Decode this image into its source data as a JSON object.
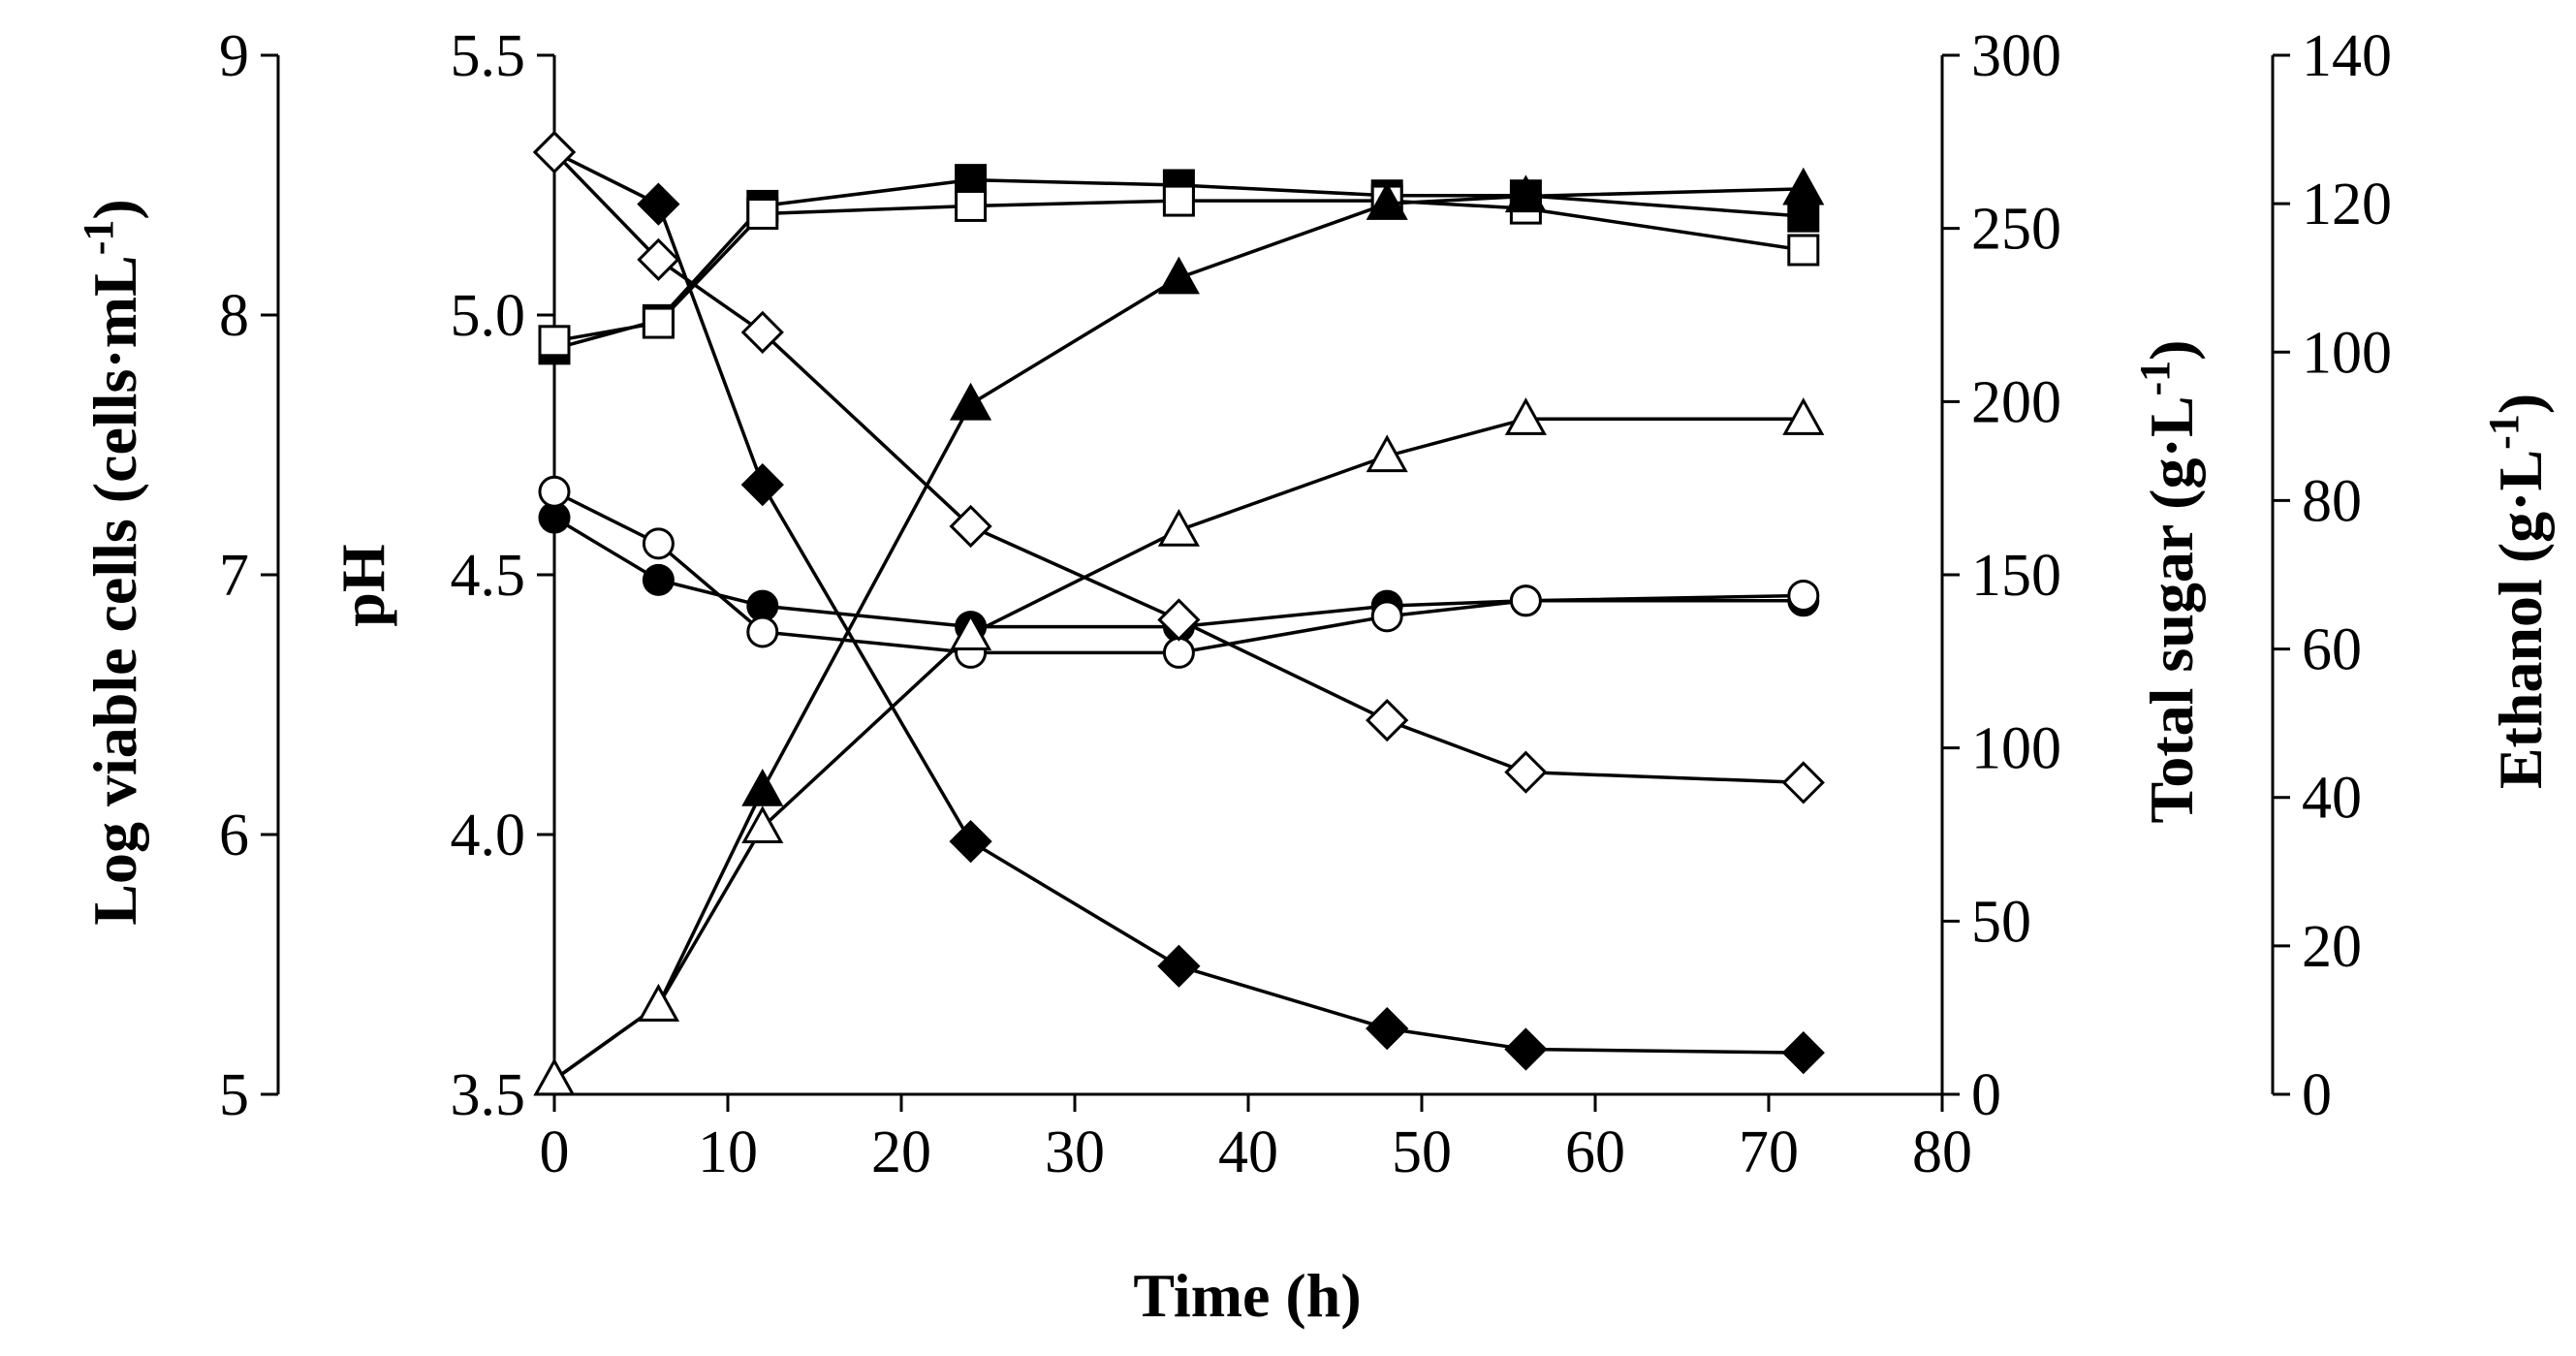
{
  "chart_data": {
    "type": "line",
    "title": "",
    "xlabel": "Time (h)",
    "xlim": [
      0,
      80
    ],
    "xticks": [
      "0",
      "10",
      "20",
      "30",
      "40",
      "50",
      "60",
      "70",
      "80"
    ],
    "axes": {
      "cells": {
        "label": "Log viable cells (cells·mL",
        "label_sup": "-1",
        "label_end": ")",
        "range": [
          5,
          9
        ],
        "ticks": [
          "5",
          "6",
          "7",
          "8",
          "9"
        ]
      },
      "pH": {
        "label": "pH",
        "range": [
          3.5,
          5.5
        ],
        "ticks": [
          "3.5",
          "4.0",
          "4.5",
          "5.0",
          "5.5"
        ]
      },
      "sugar": {
        "label": "Total sugar (g·L",
        "label_sup": "-1",
        "label_end": ")",
        "range": [
          0,
          300
        ],
        "ticks": [
          "0",
          "50",
          "100",
          "150",
          "200",
          "250",
          "300"
        ]
      },
      "ethanol": {
        "label": "Ethanol (g·L",
        "label_sup": "-1",
        "label_end": ")",
        "range": [
          0,
          140
        ],
        "ticks": [
          "0",
          "20",
          "40",
          "60",
          "80",
          "100",
          "120",
          "140"
        ]
      }
    },
    "x": [
      0,
      6,
      12,
      24,
      36,
      48,
      56,
      72
    ],
    "series": [
      {
        "name": "Viable cells (filled square)",
        "axis": "cells",
        "marker": "square",
        "filled": true,
        "values": [
          7.87,
          7.98,
          8.42,
          8.52,
          8.5,
          8.46,
          8.46,
          8.38
        ]
      },
      {
        "name": "Viable cells (open square)",
        "axis": "cells",
        "marker": "square",
        "filled": false,
        "values": [
          7.9,
          7.97,
          8.39,
          8.42,
          8.44,
          8.44,
          8.41,
          8.25
        ]
      },
      {
        "name": "pH (filled circle)",
        "axis": "pH",
        "marker": "circle",
        "filled": true,
        "values": [
          4.61,
          4.49,
          4.44,
          4.4,
          4.4,
          4.44,
          4.45,
          4.45
        ]
      },
      {
        "name": "pH (open circle)",
        "axis": "pH",
        "marker": "circle",
        "filled": false,
        "values": [
          4.66,
          4.56,
          4.39,
          4.35,
          4.35,
          4.42,
          4.45,
          4.46
        ]
      },
      {
        "name": "Total sugar (filled diamond)",
        "axis": "sugar",
        "marker": "diamond",
        "filled": true,
        "values": [
          272,
          257,
          176,
          73,
          37,
          19,
          13,
          12
        ]
      },
      {
        "name": "Total sugar (open diamond)",
        "axis": "sugar",
        "marker": "diamond",
        "filled": false,
        "values": [
          272,
          241,
          220,
          164,
          137,
          108,
          93,
          90
        ]
      },
      {
        "name": "Ethanol (filled triangle)",
        "axis": "ethanol",
        "marker": "triangle",
        "filled": true,
        "values": [
          2,
          12,
          41,
          93,
          110,
          120,
          121,
          122
        ]
      },
      {
        "name": "Ethanol (open triangle)",
        "axis": "ethanol",
        "marker": "triangle",
        "filled": false,
        "values": [
          2,
          12,
          36,
          62,
          76,
          86,
          91,
          91
        ]
      }
    ]
  }
}
